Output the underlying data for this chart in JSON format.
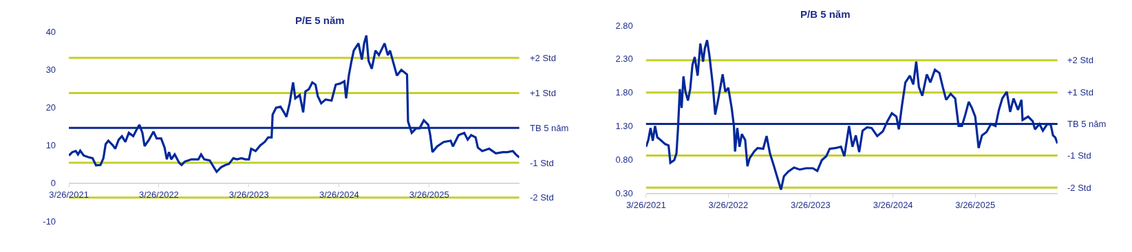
{
  "chart_data": [
    {
      "type": "line",
      "title": "P/E 5 năm",
      "x": [
        "2021-03-26",
        "2021-04-09",
        "2021-04-23",
        "2021-05-02",
        "2021-05-11",
        "2021-05-25",
        "2021-06-12",
        "2021-06-30",
        "2021-07-14",
        "2021-08-01",
        "2021-08-13",
        "2021-08-22",
        "2021-09-02",
        "2021-09-20",
        "2021-09-30",
        "2021-10-14",
        "2021-10-27",
        "2021-11-10",
        "2021-11-24",
        "2021-12-12",
        "2021-12-26",
        "2022-01-06",
        "2022-01-18",
        "2022-01-27",
        "2022-02-14",
        "2022-03-04",
        "2022-03-17",
        "2022-04-04",
        "2022-04-18",
        "2022-04-27",
        "2022-05-06",
        "2022-05-15",
        "2022-05-29",
        "2022-06-16",
        "2022-06-26",
        "2022-07-09",
        "2022-08-05",
        "2022-09-02",
        "2022-09-13",
        "2022-09-26",
        "2022-10-18",
        "2022-11-01",
        "2022-11-15",
        "2022-12-03",
        "2022-12-21",
        "2023-01-04",
        "2023-01-22",
        "2023-02-05",
        "2023-02-24",
        "2023-03-12",
        "2023-03-26",
        "2023-04-04",
        "2023-04-22",
        "2023-05-11",
        "2023-05-29",
        "2023-06-12",
        "2023-06-26",
        "2023-06-30",
        "2023-07-14",
        "2023-08-01",
        "2023-08-15",
        "2023-08-25",
        "2023-09-07",
        "2023-09-21",
        "2023-09-30",
        "2023-10-18",
        "2023-11-01",
        "2023-11-10",
        "2023-11-24",
        "2023-12-08",
        "2023-12-21",
        "2023-12-30",
        "2024-01-13",
        "2024-01-31",
        "2024-02-24",
        "2024-03-12",
        "2024-03-30",
        "2024-04-16",
        "2024-04-23",
        "2024-05-04",
        "2024-05-15",
        "2024-05-24",
        "2024-06-12",
        "2024-06-26",
        "2024-07-05",
        "2024-07-14",
        "2024-07-23",
        "2024-08-05",
        "2024-08-20",
        "2024-09-03",
        "2024-09-26",
        "2024-10-09",
        "2024-10-18",
        "2024-11-01",
        "2024-11-15",
        "2024-12-03",
        "2024-12-26",
        "2024-12-30",
        "2025-01-14",
        "2025-02-01",
        "2025-02-15",
        "2025-03-04",
        "2025-03-22",
        "2025-03-30",
        "2025-04-08",
        "2025-04-27",
        "2025-05-24",
        "2025-06-21",
        "2025-06-30",
        "2025-07-23",
        "2025-08-15",
        "2025-08-29",
        "2025-09-12",
        "2025-09-30",
        "2025-10-09",
        "2025-10-27",
        "2025-11-24",
        "2025-12-21",
        "2026-01-18",
        "2026-02-05",
        "2026-02-28",
        "2026-03-12",
        "2026-03-26"
      ],
      "series": [
        {
          "color": "#00289a",
          "values": [
            7.3,
            8.2,
            8.5,
            7.6,
            8.6,
            7.3,
            6.9,
            6.6,
            4.7,
            4.8,
            6.6,
            10.3,
            11.2,
            10.0,
            9.1,
            11.5,
            12.4,
            10.9,
            13.3,
            12.4,
            14.2,
            15.4,
            13.3,
            9.8,
            11.5,
            13.6,
            11.8,
            11.8,
            9.4,
            6.3,
            8.2,
            6.3,
            7.6,
            5.4,
            4.8,
            5.7,
            6.3,
            6.3,
            7.6,
            6.3,
            6.0,
            4.5,
            3.0,
            4.2,
            4.8,
            5.1,
            6.6,
            6.3,
            6.6,
            6.3,
            6.3,
            9.1,
            8.5,
            10.0,
            10.9,
            12.1,
            12.1,
            18.1,
            19.9,
            20.2,
            18.7,
            17.5,
            21.1,
            26.6,
            22.4,
            23.3,
            18.7,
            24.2,
            24.8,
            26.6,
            26.0,
            23.0,
            21.1,
            22.1,
            21.8,
            26.0,
            26.3,
            26.9,
            22.4,
            28.4,
            32.3,
            35.0,
            36.9,
            32.6,
            36.9,
            39.0,
            32.3,
            30.2,
            35.0,
            33.8,
            36.9,
            33.8,
            35.0,
            31.7,
            28.4,
            29.9,
            28.7,
            16.3,
            13.3,
            14.5,
            14.5,
            16.6,
            15.4,
            12.7,
            8.2,
            9.7,
            10.9,
            11.2,
            9.7,
            12.7,
            13.3,
            11.5,
            12.7,
            12.1,
            9.4,
            8.5,
            9.1,
            7.9,
            8.2,
            8.2,
            8.5,
            7.6,
            6.8
          ]
        }
      ],
      "xlim": [
        "2021-03-26",
        "2026-03-26"
      ],
      "xticks": [
        {
          "value": "2021-03-26",
          "label": "3/26/2021"
        },
        {
          "value": "2022-03-26",
          "label": "3/26/2022"
        },
        {
          "value": "2023-03-26",
          "label": "3/26/2023"
        },
        {
          "value": "2024-03-26",
          "label": "3/26/2024"
        },
        {
          "value": "2025-03-26",
          "label": "3/26/2025"
        }
      ],
      "ylim": [
        -10,
        40
      ],
      "yticks": [
        -10,
        0,
        10,
        20,
        30,
        40
      ],
      "ref_lines": [
        {
          "axis": "y",
          "value": 33.1,
          "label": "+2 Std",
          "color": "#c5cf2b"
        },
        {
          "axis": "y",
          "value": 23.8,
          "label": "+1 Std",
          "color": "#c5cf2b"
        },
        {
          "axis": "y",
          "value": 14.6,
          "label": "TB 5 năm",
          "color": "#0d2a8c"
        },
        {
          "axis": "y",
          "value": 5.4,
          "label": "-1 Std",
          "color": "#c5cf2b"
        },
        {
          "axis": "y",
          "value": -3.8,
          "label": "-2 Std",
          "color": "#c5cf2b"
        }
      ]
    },
    {
      "type": "line",
      "title": "P/B 5 năm",
      "x": [
        "2021-03-26",
        "2021-04-05",
        "2021-04-15",
        "2021-04-25",
        "2021-05-05",
        "2021-05-15",
        "2021-05-30",
        "2021-06-19",
        "2021-07-04",
        "2021-07-12",
        "2021-07-29",
        "2021-08-08",
        "2021-08-15",
        "2021-08-23",
        "2021-08-31",
        "2021-09-08",
        "2021-09-17",
        "2021-09-28",
        "2021-10-08",
        "2021-10-18",
        "2021-10-28",
        "2021-11-10",
        "2021-11-22",
        "2021-12-04",
        "2021-12-12",
        "2021-12-22",
        "2022-01-01",
        "2022-01-16",
        "2022-01-27",
        "2022-02-10",
        "2022-03-01",
        "2022-03-13",
        "2022-03-26",
        "2022-04-10",
        "2022-04-20",
        "2022-04-25",
        "2022-05-05",
        "2022-05-15",
        "2022-05-25",
        "2022-06-09",
        "2022-06-19",
        "2022-06-29",
        "2022-07-19",
        "2022-08-03",
        "2022-08-28",
        "2022-09-12",
        "2022-09-27",
        "2022-10-13",
        "2022-10-28",
        "2022-11-15",
        "2022-11-28",
        "2022-12-17",
        "2023-01-12",
        "2023-02-06",
        "2023-03-06",
        "2023-04-05",
        "2023-04-25",
        "2023-05-15",
        "2023-06-04",
        "2023-06-19",
        "2023-07-14",
        "2023-08-08",
        "2023-08-23",
        "2023-09-13",
        "2023-09-28",
        "2023-10-13",
        "2023-10-28",
        "2023-11-12",
        "2023-12-02",
        "2023-12-22",
        "2024-01-16",
        "2024-02-10",
        "2024-03-01",
        "2024-03-21",
        "2024-04-10",
        "2024-04-21",
        "2024-05-05",
        "2024-05-20",
        "2024-06-09",
        "2024-06-24",
        "2024-07-07",
        "2024-07-19",
        "2024-08-03",
        "2024-08-23",
        "2024-09-08",
        "2024-09-28",
        "2024-10-18",
        "2024-11-02",
        "2024-11-17",
        "2024-12-07",
        "2024-12-27",
        "2025-01-11",
        "2025-01-26",
        "2025-02-10",
        "2025-02-25",
        "2025-03-11",
        "2025-03-26",
        "2025-04-10",
        "2025-04-25",
        "2025-05-15",
        "2025-06-04",
        "2025-06-24",
        "2025-07-09",
        "2025-07-24",
        "2025-08-13",
        "2025-08-28",
        "2025-09-12",
        "2025-10-02",
        "2025-10-17",
        "2025-10-22",
        "2025-11-16",
        "2025-12-06",
        "2025-12-16",
        "2026-01-05",
        "2026-01-20",
        "2026-02-09",
        "2026-02-24",
        "2026-03-06",
        "2026-03-16",
        "2026-03-26"
      ],
      "series": [
        {
          "color": "#00289a",
          "values": [
            0.99,
            1.09,
            1.27,
            1.08,
            1.3,
            1.13,
            1.09,
            1.03,
            1.01,
            0.75,
            0.79,
            0.89,
            1.27,
            1.85,
            1.57,
            2.04,
            1.81,
            1.68,
            1.85,
            2.21,
            2.33,
            2.05,
            2.53,
            2.26,
            2.46,
            2.58,
            2.36,
            1.92,
            1.47,
            1.71,
            2.07,
            1.81,
            1.87,
            1.57,
            1.3,
            0.92,
            1.27,
            0.99,
            1.18,
            1.09,
            0.7,
            0.82,
            0.92,
            0.97,
            0.96,
            1.15,
            0.89,
            0.72,
            0.55,
            0.35,
            0.55,
            0.62,
            0.68,
            0.65,
            0.67,
            0.67,
            0.63,
            0.79,
            0.85,
            0.96,
            0.97,
            0.99,
            0.85,
            1.3,
            0.99,
            1.16,
            0.91,
            1.23,
            1.28,
            1.27,
            1.15,
            1.22,
            1.37,
            1.49,
            1.44,
            1.25,
            1.61,
            1.95,
            2.05,
            1.92,
            2.26,
            1.88,
            1.75,
            2.07,
            1.95,
            2.14,
            2.09,
            1.88,
            1.69,
            1.78,
            1.71,
            1.3,
            1.3,
            1.47,
            1.66,
            1.57,
            1.44,
            0.97,
            1.16,
            1.21,
            1.33,
            1.3,
            1.54,
            1.71,
            1.81,
            1.51,
            1.71,
            1.54,
            1.69,
            1.39,
            1.44,
            1.37,
            1.25,
            1.33,
            1.23,
            1.33,
            1.32,
            1.16,
            1.13,
            1.04
          ]
        }
      ],
      "xlim": [
        "2021-03-26",
        "2026-03-26"
      ],
      "xticks": [
        {
          "value": "2021-03-26",
          "label": "3/26/2021"
        },
        {
          "value": "2022-03-26",
          "label": "3/26/2022"
        },
        {
          "value": "2023-03-26",
          "label": "3/26/2023"
        },
        {
          "value": "2024-03-26",
          "label": "3/26/2024"
        },
        {
          "value": "2025-03-26",
          "label": "3/26/2025"
        }
      ],
      "ylim": [
        0.3,
        2.8
      ],
      "yticks": [
        {
          "value": 0.3,
          "label": "0.30"
        },
        {
          "value": 0.8,
          "label": "0.80"
        },
        {
          "value": 1.3,
          "label": "1.30"
        },
        {
          "value": 1.8,
          "label": "1.80"
        },
        {
          "value": 2.3,
          "label": "2.30"
        },
        {
          "value": 2.8,
          "label": "2.80"
        }
      ],
      "ref_lines": [
        {
          "axis": "y",
          "value": 2.28,
          "label": "+2 Std",
          "color": "#c5cf2b"
        },
        {
          "axis": "y",
          "value": 1.8,
          "label": "+1 Std",
          "color": "#c5cf2b"
        },
        {
          "axis": "y",
          "value": 1.33,
          "label": "TB 5 năm",
          "color": "#0d2a8c"
        },
        {
          "axis": "y",
          "value": 0.86,
          "label": "-1 Std",
          "color": "#c5cf2b"
        },
        {
          "axis": "y",
          "value": 0.38,
          "label": "-2 Std",
          "color": "#c5cf2b"
        }
      ]
    }
  ]
}
